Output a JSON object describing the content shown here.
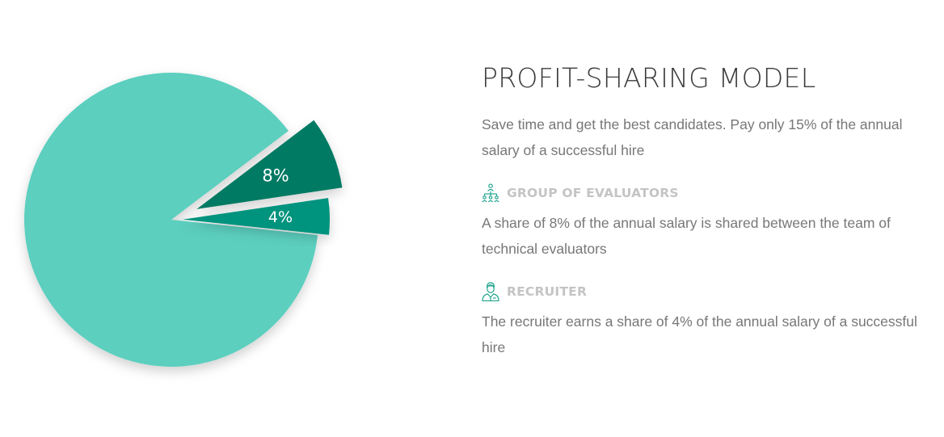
{
  "heading": "PROFIT-SHARING MODEL",
  "intro": "Save time and get the best candidates. Pay only 15% of the annual salary of a successful hire",
  "roles": [
    {
      "title": "GROUP OF EVALUATORS",
      "icon": "org-chart-icon",
      "text": "A share of 8% of the annual salary is shared between the team of technical evaluators"
    },
    {
      "title": "RECRUITER",
      "icon": "person-icon",
      "text": "The recruiter earns a share of 4% of the annual salary of a successful hire"
    }
  ],
  "colors": {
    "main_slice": "#5ccfbf",
    "evaluators_slice": "#007a63",
    "recruiter_slice": "#00937d",
    "icon": "#22a58f"
  },
  "chart_data": {
    "type": "pie",
    "slices": [
      {
        "label": "",
        "value": 88,
        "color": "#5ccfbf",
        "exploded": false
      },
      {
        "label": "8%",
        "value": 8,
        "color": "#007a63",
        "exploded": true
      },
      {
        "label": "4%",
        "value": 4,
        "color": "#00937d",
        "exploded": true
      }
    ]
  }
}
